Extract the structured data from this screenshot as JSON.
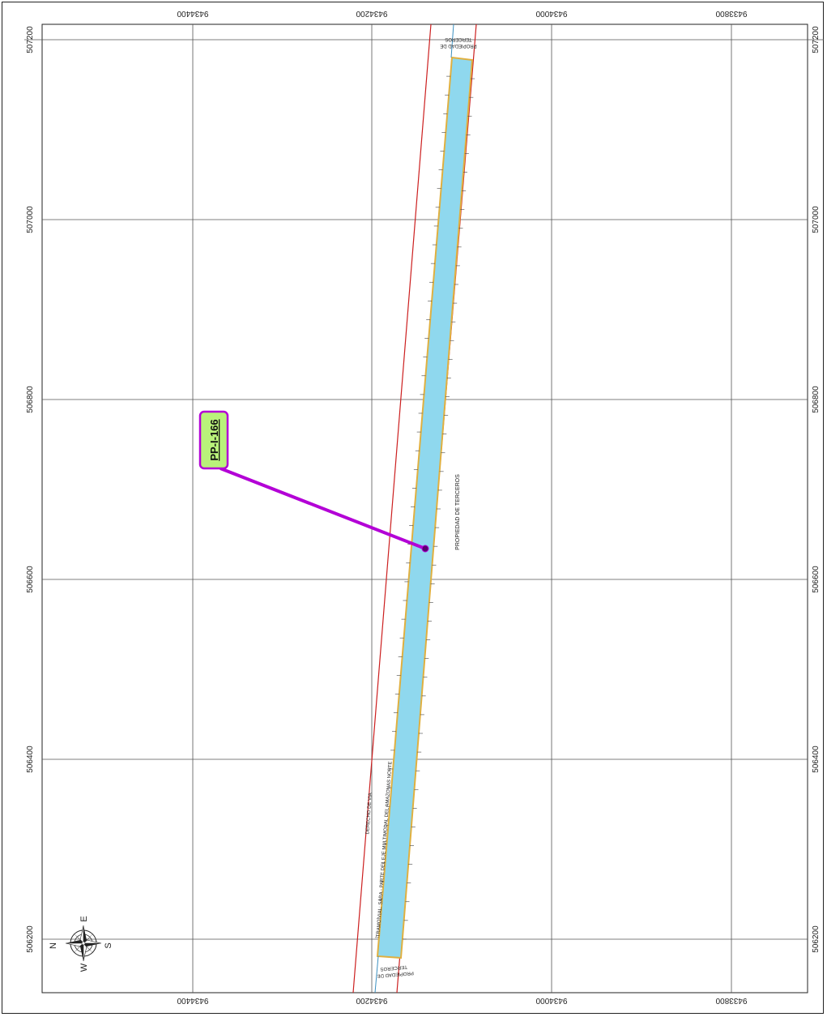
{
  "map": {
    "grid_x_labels": [
      "9434400",
      "9434200",
      "9434000",
      "9433800"
    ],
    "grid_y_labels": [
      "507200",
      "507000",
      "506800",
      "506600",
      "506400",
      "506200"
    ],
    "callout_label": "PP-I-166",
    "road_label": "TRAMO VIAL: SARA - PARTE DEL EJE MULTIMODAL DEL AMAZONAS NORTE",
    "right_of_way_label": "DERECHO DE VIA",
    "third_party_label": "PROPIEDAD DE TERCEROS",
    "third_party_top_label_1": "PROPIEDAD DE",
    "third_party_top_label_2": "TERCEROS",
    "third_party_bottom_label_1": "PROPIEDAD DE",
    "third_party_bottom_label_2": "TERCEROS",
    "compass": {
      "n": "N",
      "e": "E",
      "s": "S",
      "w": "W"
    },
    "colors": {
      "parcel_fill": "#8fd8ee",
      "parcel_edge": "#e0b040",
      "road_line": "#cc1f1f",
      "callout_line": "#b300d6",
      "callout_fill": "#b9f27a",
      "callout_border": "#b300d6",
      "grid": "#555555"
    }
  }
}
